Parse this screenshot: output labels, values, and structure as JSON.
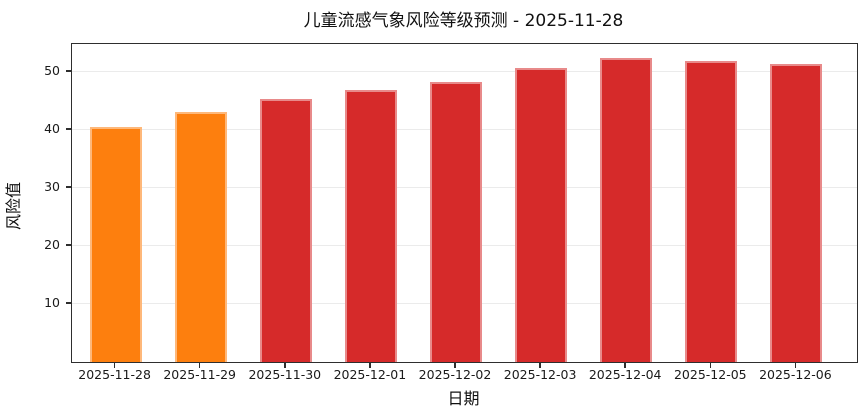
{
  "figure": {
    "title": "儿童流感气象风险等级预测 - 2025-11-28"
  },
  "chart_data": {
    "type": "bar",
    "title": "儿童流感气象风险等级预测 - 2025-11-28",
    "xlabel": "日期",
    "ylabel": "风险值",
    "categories": [
      "2025-11-28",
      "2025-11-29",
      "2025-11-30",
      "2025-12-01",
      "2025-12-02",
      "2025-12-03",
      "2025-12-04",
      "2025-12-05",
      "2025-12-06"
    ],
    "values": [
      40.5,
      43.0,
      45.3,
      46.9,
      48.3,
      50.7,
      52.4,
      51.9,
      51.4
    ],
    "bar_colors": [
      "#fd7f0e",
      "#fd7f0e",
      "#d62a2a",
      "#d62a2a",
      "#d62a2a",
      "#d62a2a",
      "#d62a2a",
      "#d62a2a",
      "#d62a2a"
    ],
    "colors": {
      "orange": "#fd7f0e",
      "red": "#d62a2a",
      "grid": "#ebebeb",
      "spine": "#2e2e2e",
      "text": "#1a1a1a"
    },
    "yticks": [
      10,
      20,
      30,
      40,
      50
    ],
    "ylim": [
      0,
      54.8
    ],
    "grid": "horizontal",
    "legend": "none"
  }
}
